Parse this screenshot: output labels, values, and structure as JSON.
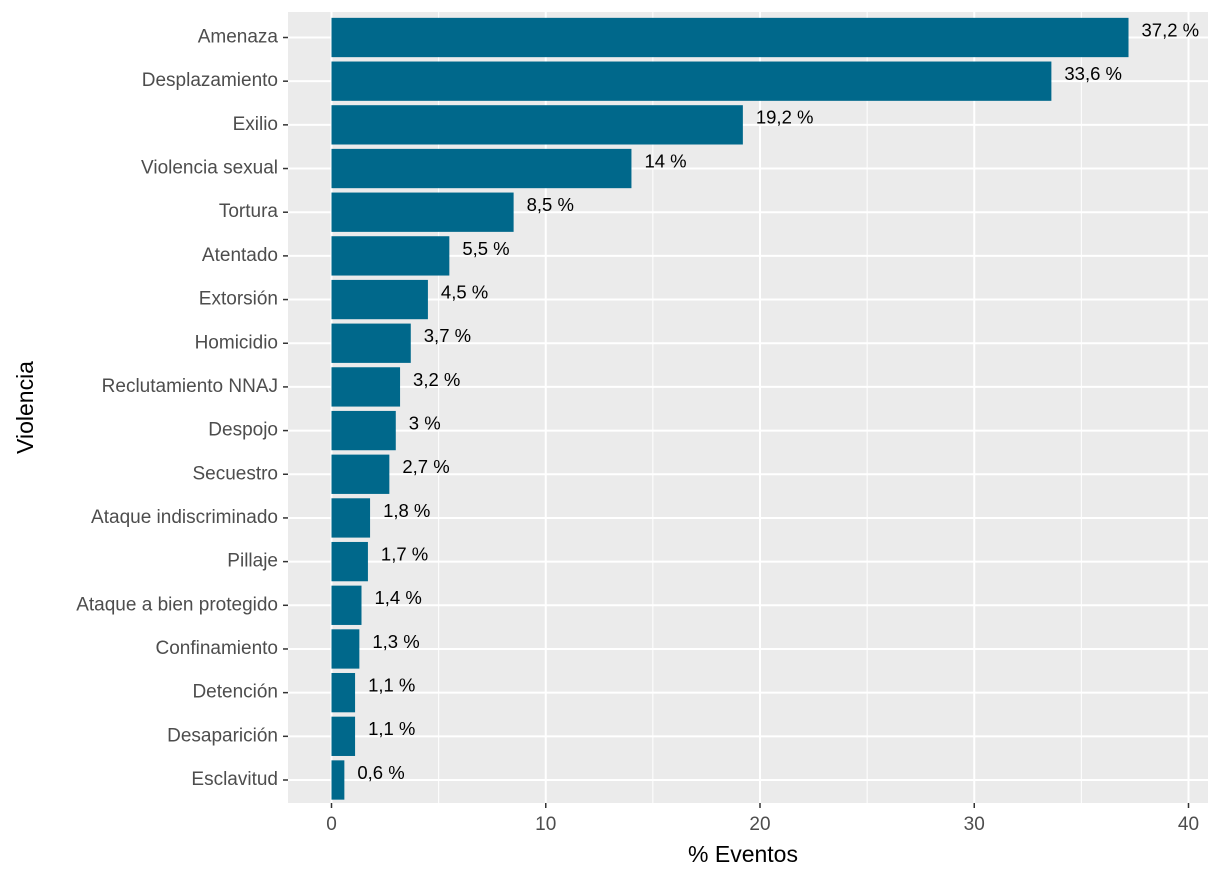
{
  "chart_data": {
    "type": "bar",
    "orientation": "horizontal",
    "xlabel": "% Eventos",
    "ylabel": "Violencia",
    "xlim": [
      0,
      40
    ],
    "x_ticks": [
      0,
      10,
      20,
      30,
      40
    ],
    "grid": true,
    "bar_color": "#00688b",
    "panel_color": "#ebebeb",
    "categories": [
      "Amenaza",
      "Desplazamiento",
      "Exilio",
      "Violencia sexual",
      "Tortura",
      "Atentado",
      "Extorsión",
      "Homicidio",
      "Reclutamiento NNAJ",
      "Despojo",
      "Secuestro",
      "Ataque indiscriminado",
      "Pillaje",
      "Ataque a bien protegido",
      "Confinamiento",
      "Detención",
      "Desaparición",
      "Esclavitud"
    ],
    "values": [
      37.2,
      33.6,
      19.2,
      14,
      8.5,
      5.5,
      4.5,
      3.7,
      3.2,
      3,
      2.7,
      1.8,
      1.7,
      1.4,
      1.3,
      1.1,
      1.1,
      0.6
    ],
    "value_labels": [
      "37,2 %",
      "33,6 %",
      "19,2 %",
      "14 %",
      "8,5 %",
      "5,5 %",
      "4,5 %",
      "3,7 %",
      "3,2 %",
      "3 %",
      "2,7 %",
      "1,8 %",
      "1,7 %",
      "1,4 %",
      "1,3 %",
      "1,1 %",
      "1,1 %",
      "0,6 %"
    ]
  }
}
